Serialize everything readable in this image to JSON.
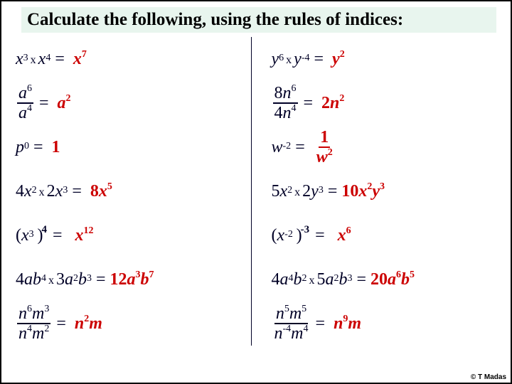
{
  "title": "Calculate the following, using the rules of indices:",
  "colors": {
    "text": "#000026",
    "answer": "#cc0000",
    "title_bg": "#e8f5ee",
    "border": "#000000"
  },
  "left": [
    {
      "type": "product",
      "terms": [
        {
          "coef": "",
          "var": "x",
          "exp": "3"
        },
        {
          "coef": "",
          "var": "x",
          "exp": "4"
        }
      ],
      "ans": {
        "coef": "",
        "parts": [
          {
            "var": "x",
            "exp": "7"
          }
        ]
      }
    },
    {
      "type": "fraction",
      "num": {
        "coef": "",
        "var": "a",
        "exp": "6"
      },
      "den": {
        "coef": "",
        "var": "a",
        "exp": "4"
      },
      "ans": {
        "coef": "",
        "parts": [
          {
            "var": "a",
            "exp": "2"
          }
        ]
      }
    },
    {
      "type": "power0",
      "base": {
        "coef": "",
        "var": "p",
        "exp": "0"
      },
      "ans_text": "1"
    },
    {
      "type": "product",
      "terms": [
        {
          "coef": "4",
          "var": "x",
          "exp": "2"
        },
        {
          "coef": "2",
          "var": "x",
          "exp": "3"
        }
      ],
      "ans": {
        "coef": "8",
        "parts": [
          {
            "var": "x",
            "exp": "5"
          }
        ]
      }
    },
    {
      "type": "paren_power",
      "inner": {
        "coef": "",
        "var": "x",
        "exp": "3"
      },
      "outer_exp": "4",
      "ans": {
        "coef": "",
        "parts": [
          {
            "var": "x",
            "exp": "12"
          }
        ]
      }
    },
    {
      "type": "product2v",
      "terms": [
        {
          "coef": "4",
          "parts": [
            {
              "var": "a",
              "exp": ""
            },
            {
              "var": "b",
              "exp": "4"
            }
          ]
        },
        {
          "coef": "3",
          "parts": [
            {
              "var": "a",
              "exp": "2"
            },
            {
              "var": "b",
              "exp": "3"
            }
          ]
        }
      ],
      "ans": {
        "coef": "12",
        "parts": [
          {
            "var": "a",
            "exp": "3"
          },
          {
            "var": "b",
            "exp": "7"
          }
        ]
      }
    },
    {
      "type": "fraction2v",
      "num": {
        "parts": [
          {
            "var": "n",
            "exp": "6"
          },
          {
            "var": "m",
            "exp": "3"
          }
        ]
      },
      "den": {
        "parts": [
          {
            "var": "n",
            "exp": "4"
          },
          {
            "var": "m",
            "exp": "2"
          }
        ]
      },
      "ans": {
        "coef": "",
        "parts": [
          {
            "var": "n",
            "exp": "2"
          },
          {
            "var": "m",
            "exp": ""
          }
        ]
      }
    }
  ],
  "right": [
    {
      "type": "product",
      "terms": [
        {
          "coef": "",
          "var": "y",
          "exp": "6"
        },
        {
          "coef": "",
          "var": "y",
          "exp": "-4"
        }
      ],
      "ans": {
        "coef": "",
        "parts": [
          {
            "var": "y",
            "exp": "2"
          }
        ]
      }
    },
    {
      "type": "fraction",
      "num": {
        "coef": "8",
        "var": "n",
        "exp": "6"
      },
      "den": {
        "coef": "4",
        "var": "n",
        "exp": "4"
      },
      "ans": {
        "coef": "2",
        "parts": [
          {
            "var": "n",
            "exp": "2"
          }
        ]
      }
    },
    {
      "type": "negpower_frac",
      "base": {
        "coef": "",
        "var": "w",
        "exp": "-2"
      },
      "ans_frac": {
        "num": "1",
        "den_var": "w",
        "den_exp": "2"
      }
    },
    {
      "type": "product2v",
      "terms": [
        {
          "coef": "5",
          "parts": [
            {
              "var": "x",
              "exp": "2"
            }
          ]
        },
        {
          "coef": "2",
          "parts": [
            {
              "var": "y",
              "exp": "3"
            }
          ]
        }
      ],
      "ans": {
        "coef": "10",
        "parts": [
          {
            "var": "x",
            "exp": "2"
          },
          {
            "var": "y",
            "exp": "3"
          }
        ]
      }
    },
    {
      "type": "paren_power",
      "inner": {
        "coef": "",
        "var": "x",
        "exp": "-2"
      },
      "outer_exp": "-3",
      "ans": {
        "coef": "",
        "parts": [
          {
            "var": "x",
            "exp": "6"
          }
        ]
      }
    },
    {
      "type": "product2v",
      "terms": [
        {
          "coef": "4",
          "parts": [
            {
              "var": "a",
              "exp": "4"
            },
            {
              "var": "b",
              "exp": "2"
            }
          ]
        },
        {
          "coef": "5",
          "parts": [
            {
              "var": "a",
              "exp": "2"
            },
            {
              "var": "b",
              "exp": "3"
            }
          ]
        }
      ],
      "ans": {
        "coef": "20",
        "parts": [
          {
            "var": "a",
            "exp": "6"
          },
          {
            "var": "b",
            "exp": "5"
          }
        ]
      }
    },
    {
      "type": "fraction2v",
      "num": {
        "parts": [
          {
            "var": "n",
            "exp": "5"
          },
          {
            "var": "m",
            "exp": "5"
          }
        ]
      },
      "den": {
        "parts": [
          {
            "var": "n",
            "exp": "-4"
          },
          {
            "var": "m",
            "exp": "4"
          }
        ]
      },
      "ans": {
        "coef": "",
        "parts": [
          {
            "var": "n",
            "exp": "9"
          },
          {
            "var": "m",
            "exp": ""
          }
        ]
      }
    }
  ],
  "credit": "© T Madas"
}
